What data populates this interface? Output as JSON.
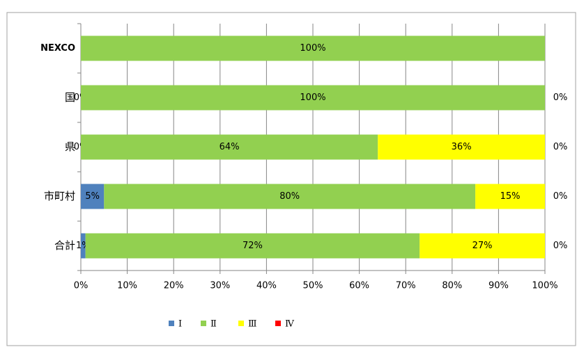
{
  "chart_data": {
    "type": "stacked-barh",
    "categories": [
      "NEXCO",
      "国",
      "県",
      "市町村",
      "合計"
    ],
    "series": [
      {
        "name": "Ⅰ",
        "color": "#4f81bd",
        "values": [
          0,
          0,
          0,
          5,
          1
        ],
        "value_labels": [
          null,
          "0%",
          "0%",
          "5%",
          "1%"
        ]
      },
      {
        "name": "Ⅱ",
        "color": "#92d050",
        "values": [
          100,
          100,
          64,
          80,
          72
        ],
        "value_labels": [
          "100%",
          "100%",
          "64%",
          "80%",
          "72%"
        ]
      },
      {
        "name": "Ⅲ",
        "color": "#ffff00",
        "values": [
          0,
          0,
          36,
          15,
          27
        ],
        "value_labels": [
          null,
          null,
          "36%",
          "15%",
          "27%"
        ]
      },
      {
        "name": "Ⅳ",
        "color": "#ff0000",
        "values": [
          0,
          0,
          0,
          0,
          0
        ],
        "value_labels": [
          null,
          "0%",
          "0%",
          "0%",
          "0%"
        ]
      }
    ],
    "xlim": [
      0,
      100
    ],
    "xticks": [
      {
        "value": 0,
        "label": "0%"
      },
      {
        "value": 10,
        "label": "10%"
      },
      {
        "value": 20,
        "label": "20%"
      },
      {
        "value": 30,
        "label": "30%"
      },
      {
        "value": 40,
        "label": "40%"
      },
      {
        "value": 50,
        "label": "50%"
      },
      {
        "value": 60,
        "label": "60%"
      },
      {
        "value": 70,
        "label": "70%"
      },
      {
        "value": 80,
        "label": "80%"
      },
      {
        "value": 90,
        "label": "90%"
      },
      {
        "value": 100,
        "label": "100%"
      }
    ],
    "grid": true,
    "legend": "bottom"
  }
}
